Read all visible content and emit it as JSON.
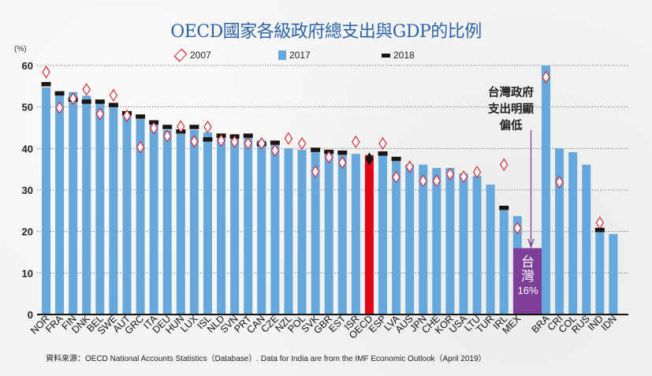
{
  "chart_data": {
    "type": "bar",
    "title": "OECD國家各級政府總支出與GDP的比例",
    "ylabel": "(%)",
    "xlabel": "",
    "ylim": [
      0,
      60
    ],
    "yticks": [
      0,
      10,
      20,
      30,
      40,
      50,
      60
    ],
    "grid": true,
    "legend": [
      "2007",
      "2017",
      "2018"
    ],
    "legend_position": "top",
    "categories": [
      "NOR",
      "FRA",
      "FIN",
      "DNK",
      "BEL",
      "SWE",
      "AUT",
      "GRC",
      "ITA",
      "DEU",
      "HUN",
      "LUX",
      "ISL",
      "NLD",
      "SVN",
      "PRT",
      "CAN",
      "CZE",
      "NZL",
      "POL",
      "SVK",
      "GBR",
      "EST",
      "ISR",
      "OECD",
      "ESP",
      "LVA",
      "AUS",
      "JPN",
      "CHE",
      "KOR",
      "USA",
      "LTU",
      "TUR",
      "IRL",
      "MEX",
      "TWN",
      "BRA",
      "CRI",
      "COL",
      "RUS",
      "IND",
      "IDN"
    ],
    "series": [
      {
        "name": "2007",
        "marker": "diamond",
        "values": [
          58.4,
          49.8,
          52.0,
          54.2,
          48.3,
          52.8,
          47.9,
          40.3,
          44.9,
          43.0,
          45.3,
          41.7,
          45.2,
          41.9,
          41.6,
          41.2,
          41.2,
          39.5,
          42.4,
          41.2,
          34.4,
          37.9,
          36.6,
          41.6,
          37.5,
          41.2,
          33.1,
          35.6,
          32.2,
          32.2,
          33.8,
          33.2,
          34.3,
          null,
          36.1,
          20.8,
          null,
          57.2,
          31.9,
          null,
          null,
          22.1,
          null
        ]
      },
      {
        "name": "2017",
        "marker": "bar",
        "values": [
          54.7,
          53.1,
          53.6,
          52.7,
          51.2,
          50.1,
          48.1,
          47.1,
          45.8,
          44.5,
          43.5,
          44.5,
          43.9,
          42.9,
          42.5,
          42.7,
          42.0,
          40.8,
          40.0,
          39.7,
          39.2,
          38.6,
          38.4,
          38.7,
          38.4,
          38.4,
          36.9,
          36.1,
          36.1,
          35.3,
          35.3,
          34.0,
          33.4,
          31.3,
          25.1,
          23.7,
          16.0,
          60.0,
          40.0,
          39.1,
          36.1,
          19.9,
          19.4
        ]
      },
      {
        "name": "2018",
        "marker": "dash",
        "values": [
          56.0,
          53.8,
          52.3,
          51.8,
          51.8,
          51.0,
          49.0,
          48.2,
          46.8,
          45.7,
          44.6,
          45.7,
          42.7,
          43.6,
          43.4,
          43.6,
          41.6,
          41.9,
          null,
          null,
          40.2,
          39.7,
          39.5,
          null,
          null,
          39.3,
          38.0,
          null,
          null,
          null,
          null,
          null,
          null,
          null,
          26.2,
          null,
          null,
          null,
          null,
          null,
          null,
          20.9,
          null
        ]
      }
    ],
    "highlight": {
      "category": "OECD",
      "color": "#e30613"
    },
    "taiwan": {
      "category": "TWN",
      "value": 16,
      "label_line1": "台",
      "label_line2": "灣",
      "label_pct": "16%",
      "color": "#7d3f98"
    },
    "annotation": "台灣政府支出明顯偏低"
  },
  "labels": {
    "title": "OECD國家各級政府總支出與GDP的比例",
    "unit": "(%)",
    "legend_2007": "2007",
    "legend_2017": "2017",
    "legend_2018": "2018",
    "annotation_line1": "台灣政府",
    "annotation_line2": "支出明顯",
    "annotation_line3": "偏低",
    "taiwan_line1": "台",
    "taiwan_line2": "灣",
    "taiwan_pct": "16%",
    "source_label": "資料來源：",
    "source_text": "OECD National Accounts Statistics（Database）. Data for India are from the IMF Economic Outlook（April 2019）"
  },
  "colors": {
    "bar_2017": "#66a8dc",
    "marker_2018": "#1a1412",
    "diamond_2007": "#d42a36",
    "oecd_bar": "#e30613",
    "taiwan_box": "#7d3f98",
    "title": "#2c63a8"
  }
}
